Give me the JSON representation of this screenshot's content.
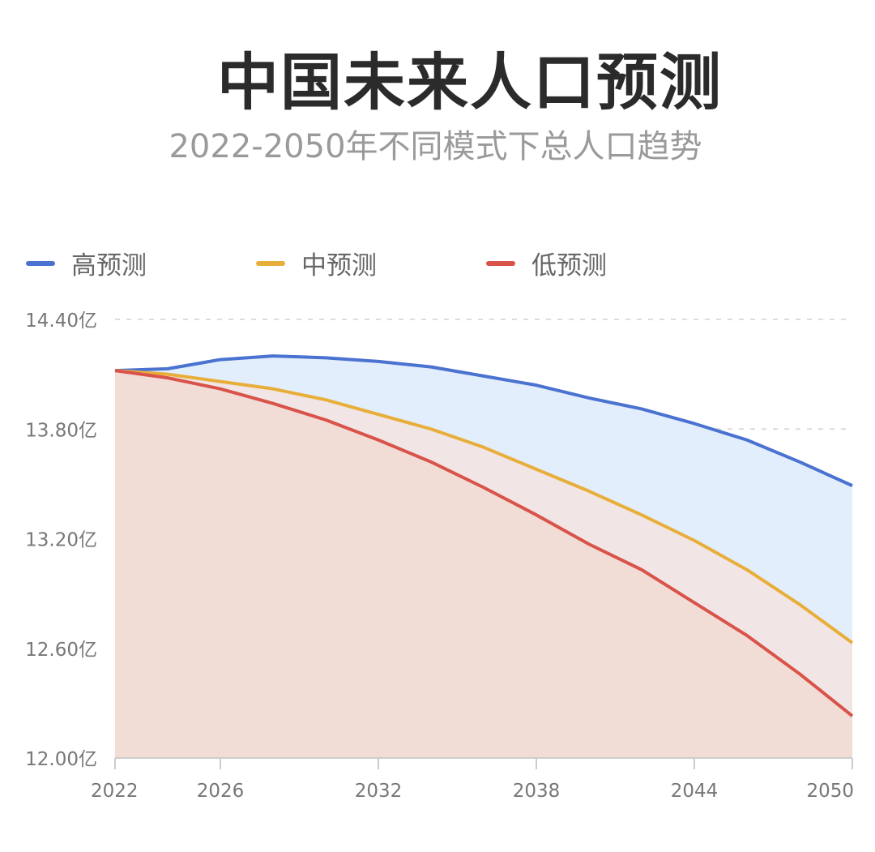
{
  "chart_data": {
    "type": "area",
    "title": "中国未来人口预测",
    "subtitle": "2022-2050年不同模式下总人口趋势",
    "xlabel": "",
    "ylabel": "",
    "x": [
      2022,
      2024,
      2026,
      2028,
      2030,
      2032,
      2034,
      2036,
      2038,
      2040,
      2042,
      2044,
      2046,
      2048,
      2050
    ],
    "x_ticks": [
      "2022",
      "2026",
      "2032",
      "2038",
      "2044",
      "2050"
    ],
    "y_ticks": [
      "12.00亿",
      "12.60亿",
      "13.20亿",
      "13.80亿",
      "14.40亿"
    ],
    "ylim": [
      12.0,
      14.4
    ],
    "xlim": [
      2022,
      2050
    ],
    "unit": "亿",
    "grid": "horizontal dashed",
    "legend_position": "top",
    "series": [
      {
        "name": "高预测",
        "color": "#4a72d0",
        "fill": "#e3eefc",
        "values": [
          14.12,
          14.13,
          14.18,
          14.2,
          14.19,
          14.17,
          14.14,
          14.09,
          14.04,
          13.97,
          13.91,
          13.83,
          13.74,
          13.62,
          13.49
        ]
      },
      {
        "name": "中预测",
        "color": "#e8ae3a",
        "fill": "#f3e4e0",
        "values": [
          14.12,
          14.1,
          14.06,
          14.02,
          13.96,
          13.88,
          13.8,
          13.7,
          13.58,
          13.46,
          13.33,
          13.19,
          13.03,
          12.84,
          12.63
        ]
      },
      {
        "name": "低预测",
        "color": "#d9534a",
        "fill": "#f1dbd3",
        "values": [
          14.12,
          14.08,
          14.02,
          13.94,
          13.85,
          13.74,
          13.62,
          13.48,
          13.33,
          13.17,
          13.03,
          12.85,
          12.67,
          12.46,
          12.23
        ]
      }
    ]
  }
}
